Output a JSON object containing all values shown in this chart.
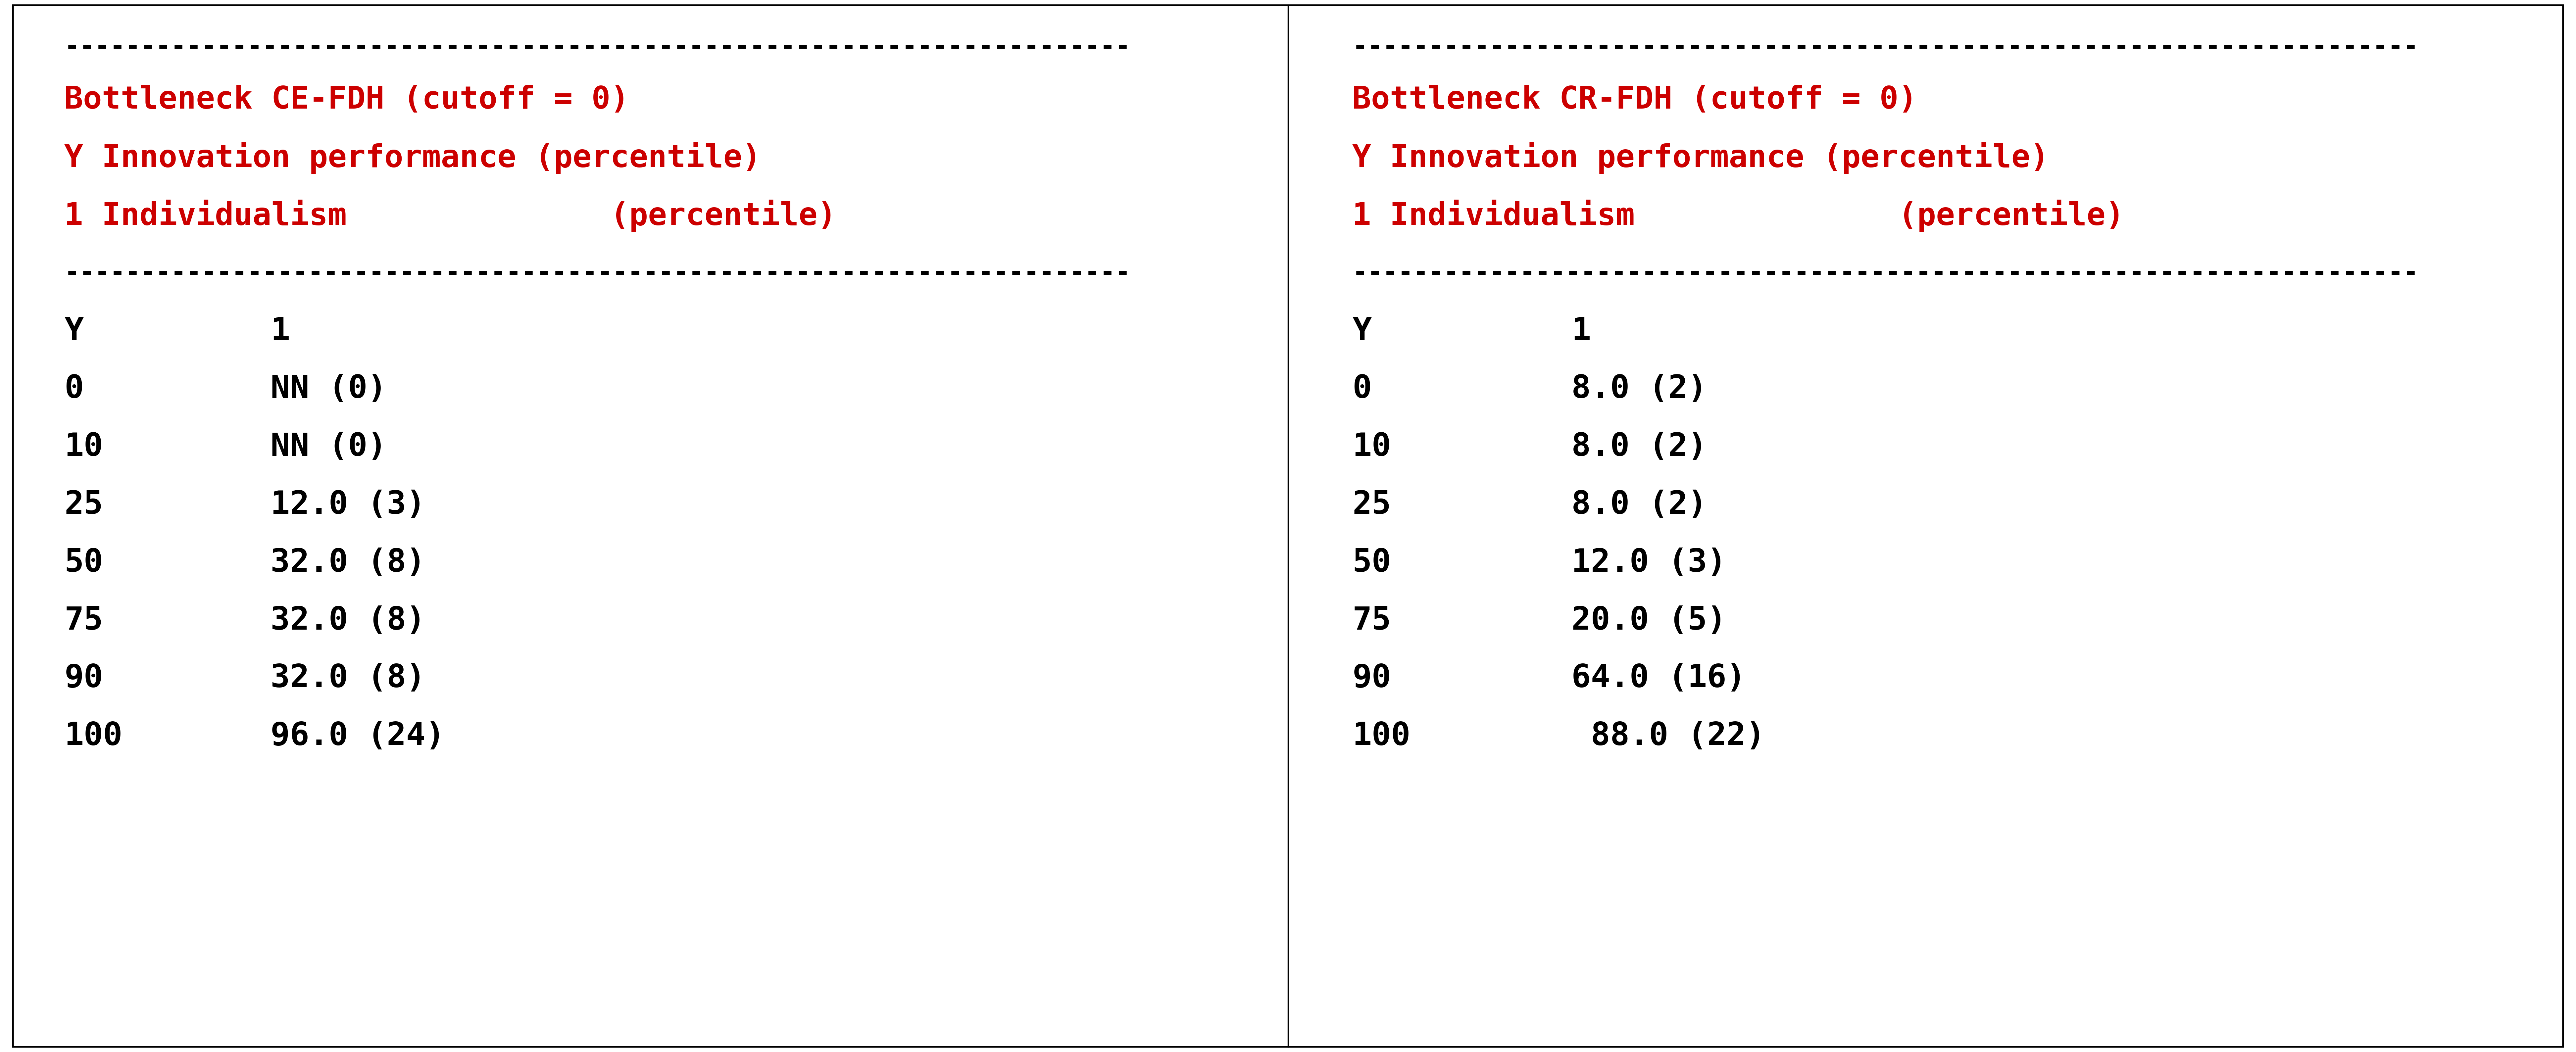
{
  "background_color": "#ffffff",
  "border_color": "#000000",
  "divider_color": "#000000",
  "red_color": "#cc0000",
  "black_color": "#000000",
  "left_panel": {
    "header_lines": [
      "Bottleneck CE-FDH (cutoff = 0)",
      "Y Innovation performance (percentile)",
      "1 Individualism              (percentile)"
    ],
    "col_headers": [
      "Y",
      "1"
    ],
    "rows": [
      [
        "0",
        "NN (0)"
      ],
      [
        "10",
        "NN (0)"
      ],
      [
        "25",
        "12.0 (3)"
      ],
      [
        "50",
        "32.0 (8)"
      ],
      [
        "75",
        "32.0 (8)"
      ],
      [
        "90",
        "32.0 (8)"
      ],
      [
        "100",
        "96.0 (24)"
      ]
    ]
  },
  "right_panel": {
    "header_lines": [
      "Bottleneck CR-FDH (cutoff = 0)",
      "Y Innovation performance (percentile)",
      "1 Individualism              (percentile)"
    ],
    "col_headers": [
      "Y",
      "1"
    ],
    "rows": [
      [
        "0",
        "8.0 (2)"
      ],
      [
        "10",
        "8.0 (2)"
      ],
      [
        "25",
        "8.0 (2)"
      ],
      [
        "50",
        "12.0 (3)"
      ],
      [
        "75",
        "20.0 (5)"
      ],
      [
        "90",
        "64.0 (16)"
      ],
      [
        "100",
        " 88.0 (22)"
      ]
    ]
  },
  "dash_line": "----------------------------------------------------------------------",
  "header_fontsize": 68,
  "data_fontsize": 70,
  "dash_fontsize": 55
}
